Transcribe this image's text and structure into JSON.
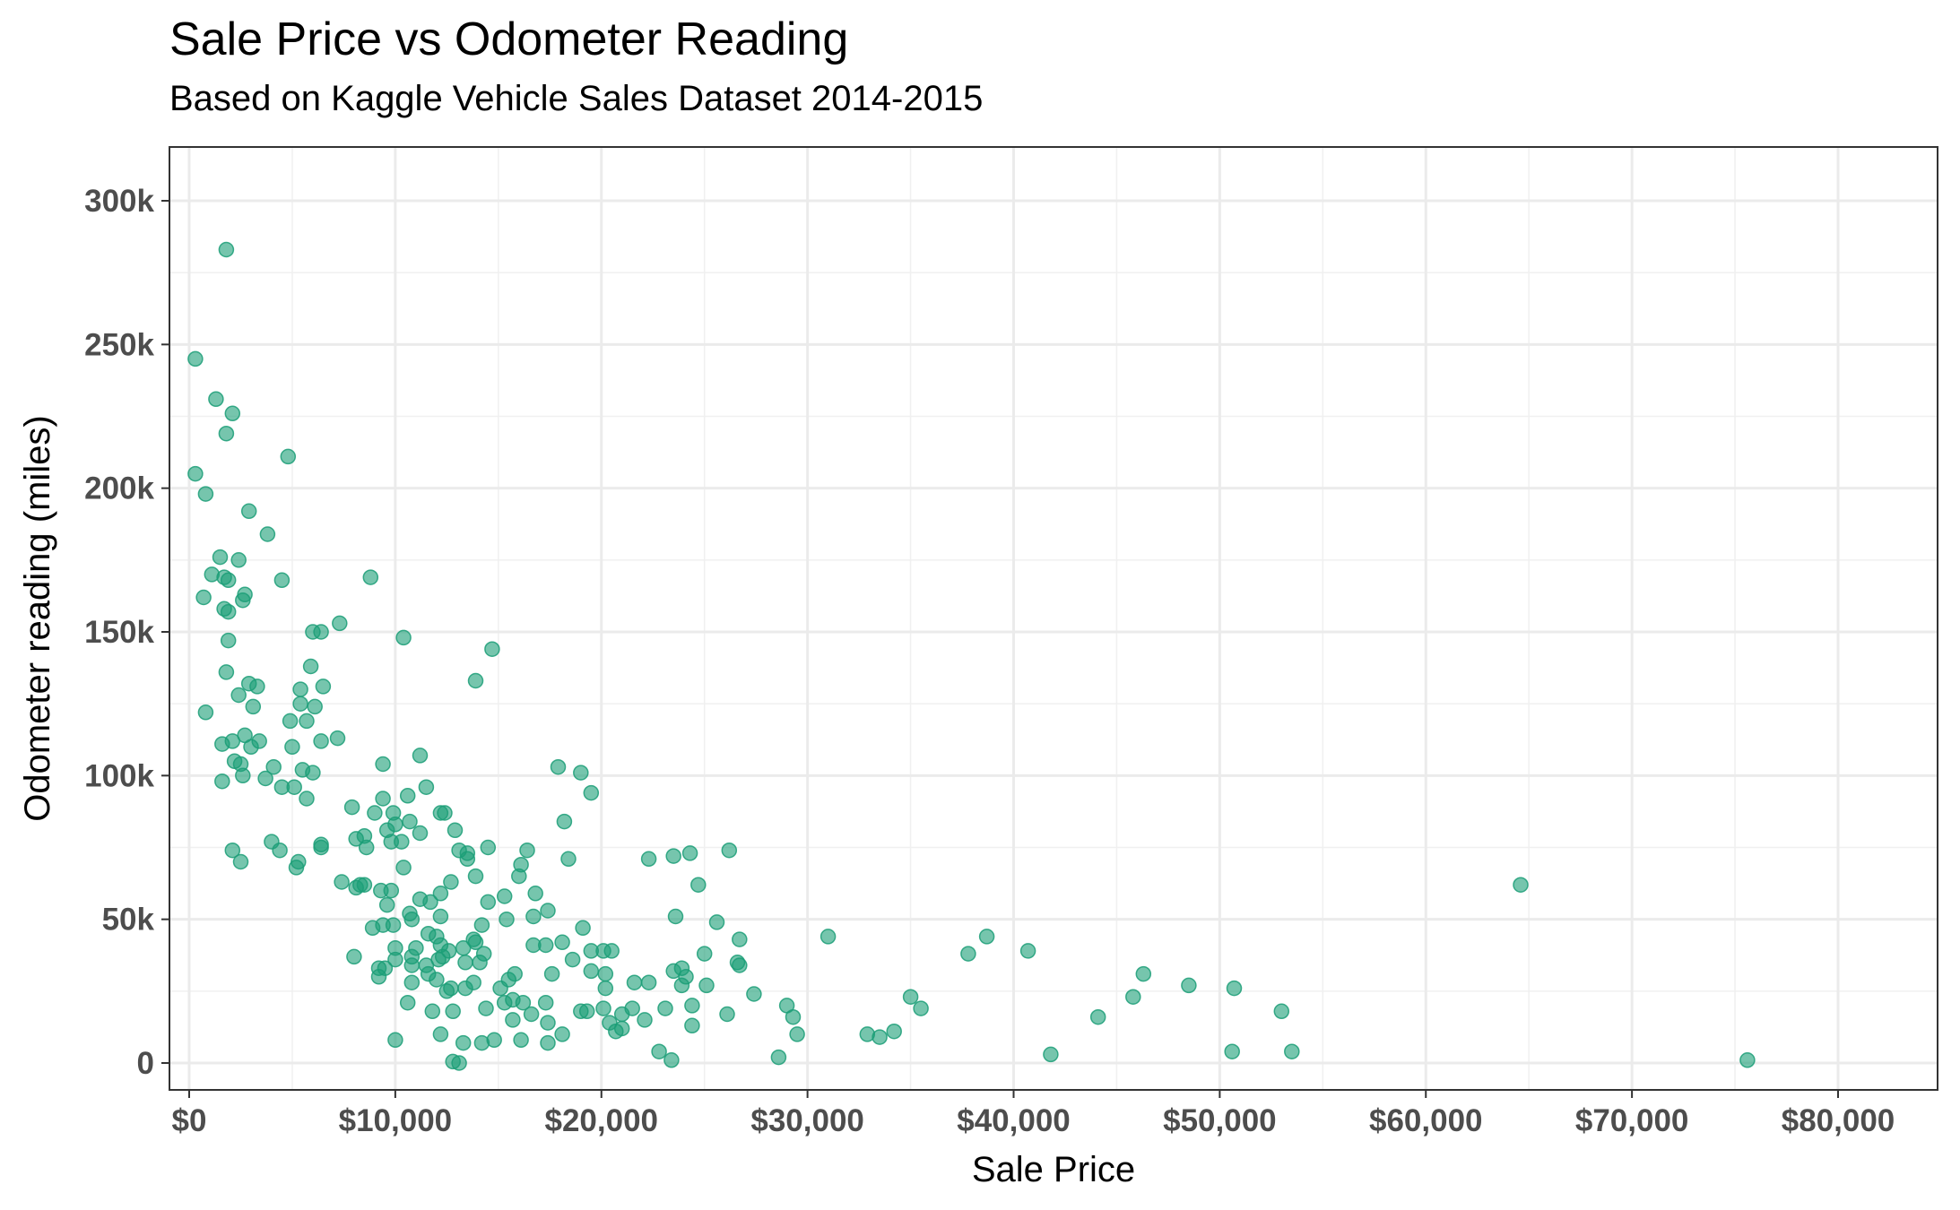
{
  "chart_data": {
    "type": "scatter",
    "title": "Sale Price vs Odometer Reading",
    "subtitle": "Based on Kaggle Vehicle Sales Dataset 2014-2015",
    "xlabel": "Sale Price",
    "ylabel": "Odometer reading (miles)",
    "xlim": [
      -1000,
      85000
    ],
    "ylim": [
      -12000,
      320000
    ],
    "x_ticks": [
      0,
      10000,
      20000,
      30000,
      40000,
      50000,
      60000,
      70000,
      80000
    ],
    "x_tick_labels": [
      "$0",
      "$10,000",
      "$20,000",
      "$30,000",
      "$40,000",
      "$50,000",
      "$60,000",
      "$70,000",
      "$80,000"
    ],
    "y_ticks": [
      0,
      50000,
      100000,
      150000,
      200000,
      250000,
      300000
    ],
    "y_tick_labels": [
      "0",
      "50k",
      "100k",
      "150k",
      "200k",
      "250k",
      "300k"
    ],
    "grid": true,
    "point_color": "#1b9e77",
    "points": [
      [
        1800,
        283000
      ],
      [
        300,
        245000
      ],
      [
        1300,
        231000
      ],
      [
        2100,
        226000
      ],
      [
        1800,
        219000
      ],
      [
        4800,
        211000
      ],
      [
        300,
        205000
      ],
      [
        800,
        198000
      ],
      [
        2900,
        192000
      ],
      [
        3800,
        184000
      ],
      [
        1500,
        176000
      ],
      [
        2400,
        175000
      ],
      [
        1100,
        170000
      ],
      [
        1700,
        169000
      ],
      [
        1900,
        168000
      ],
      [
        8800,
        169000
      ],
      [
        4500,
        168000
      ],
      [
        700,
        162000
      ],
      [
        2700,
        163000
      ],
      [
        2600,
        161000
      ],
      [
        1700,
        158000
      ],
      [
        1900,
        157000
      ],
      [
        6000,
        150000
      ],
      [
        6400,
        150000
      ],
      [
        7300,
        153000
      ],
      [
        1900,
        147000
      ],
      [
        10400,
        148000
      ],
      [
        14700,
        144000
      ],
      [
        5900,
        138000
      ],
      [
        1800,
        136000
      ],
      [
        13900,
        133000
      ],
      [
        2900,
        132000
      ],
      [
        3300,
        131000
      ],
      [
        6500,
        131000
      ],
      [
        5400,
        130000
      ],
      [
        2400,
        128000
      ],
      [
        3100,
        124000
      ],
      [
        6100,
        124000
      ],
      [
        5400,
        125000
      ],
      [
        800,
        122000
      ],
      [
        4900,
        119000
      ],
      [
        5700,
        119000
      ],
      [
        2700,
        114000
      ],
      [
        7200,
        113000
      ],
      [
        6400,
        112000
      ],
      [
        3400,
        112000
      ],
      [
        2100,
        112000
      ],
      [
        1600,
        111000
      ],
      [
        3000,
        110000
      ],
      [
        5000,
        110000
      ],
      [
        11200,
        107000
      ],
      [
        2200,
        105000
      ],
      [
        2500,
        104000
      ],
      [
        4100,
        103000
      ],
      [
        5500,
        102000
      ],
      [
        6000,
        101000
      ],
      [
        9400,
        104000
      ],
      [
        17900,
        103000
      ],
      [
        19000,
        101000
      ],
      [
        2600,
        100000
      ],
      [
        1600,
        98000
      ],
      [
        3700,
        99000
      ],
      [
        4500,
        96000
      ],
      [
        5100,
        96000
      ],
      [
        11500,
        96000
      ],
      [
        19500,
        94000
      ],
      [
        5700,
        92000
      ],
      [
        9400,
        92000
      ],
      [
        10600,
        93000
      ],
      [
        7900,
        89000
      ],
      [
        9000,
        87000
      ],
      [
        9900,
        87000
      ],
      [
        12200,
        87000
      ],
      [
        12400,
        87000
      ],
      [
        18200,
        84000
      ],
      [
        10000,
        83000
      ],
      [
        10700,
        84000
      ],
      [
        9600,
        81000
      ],
      [
        11200,
        80000
      ],
      [
        12900,
        81000
      ],
      [
        8500,
        79000
      ],
      [
        8100,
        78000
      ],
      [
        10300,
        77000
      ],
      [
        9800,
        77000
      ],
      [
        4000,
        77000
      ],
      [
        6400,
        76000
      ],
      [
        8600,
        75000
      ],
      [
        6400,
        75000
      ],
      [
        2100,
        74000
      ],
      [
        4400,
        74000
      ],
      [
        13100,
        74000
      ],
      [
        13500,
        73000
      ],
      [
        14500,
        75000
      ],
      [
        16400,
        74000
      ],
      [
        23500,
        72000
      ],
      [
        24300,
        73000
      ],
      [
        26200,
        74000
      ],
      [
        2500,
        70000
      ],
      [
        5300,
        70000
      ],
      [
        13500,
        71000
      ],
      [
        18400,
        71000
      ],
      [
        22300,
        71000
      ],
      [
        5200,
        68000
      ],
      [
        10400,
        68000
      ],
      [
        16100,
        69000
      ],
      [
        13900,
        65000
      ],
      [
        16000,
        65000
      ],
      [
        7400,
        63000
      ],
      [
        8300,
        62000
      ],
      [
        8500,
        62000
      ],
      [
        8100,
        61000
      ],
      [
        9300,
        60000
      ],
      [
        9800,
        60000
      ],
      [
        12200,
        59000
      ],
      [
        12700,
        63000
      ],
      [
        15300,
        58000
      ],
      [
        16800,
        59000
      ],
      [
        24700,
        62000
      ],
      [
        64600,
        62000
      ],
      [
        11200,
        57000
      ],
      [
        11700,
        56000
      ],
      [
        14500,
        56000
      ],
      [
        9600,
        55000
      ],
      [
        10700,
        52000
      ],
      [
        12200,
        51000
      ],
      [
        10800,
        50000
      ],
      [
        15400,
        50000
      ],
      [
        16700,
        51000
      ],
      [
        17400,
        53000
      ],
      [
        23600,
        51000
      ],
      [
        25600,
        49000
      ],
      [
        9400,
        48000
      ],
      [
        9900,
        48000
      ],
      [
        11600,
        45000
      ],
      [
        12000,
        44000
      ],
      [
        13800,
        43000
      ],
      [
        14200,
        48000
      ],
      [
        8900,
        47000
      ],
      [
        19100,
        47000
      ],
      [
        31000,
        44000
      ],
      [
        38700,
        44000
      ],
      [
        26700,
        43000
      ],
      [
        10000,
        40000
      ],
      [
        11000,
        40000
      ],
      [
        10800,
        37000
      ],
      [
        12200,
        41000
      ],
      [
        12600,
        39000
      ],
      [
        13300,
        40000
      ],
      [
        13900,
        42000
      ],
      [
        14300,
        38000
      ],
      [
        16700,
        41000
      ],
      [
        17300,
        41000
      ],
      [
        18100,
        42000
      ],
      [
        19500,
        39000
      ],
      [
        20100,
        39000
      ],
      [
        20500,
        39000
      ],
      [
        25000,
        38000
      ],
      [
        26600,
        35000
      ],
      [
        37800,
        38000
      ],
      [
        40700,
        39000
      ],
      [
        8000,
        37000
      ],
      [
        9500,
        33000
      ],
      [
        10000,
        36000
      ],
      [
        10800,
        34000
      ],
      [
        11600,
        31000
      ],
      [
        12300,
        37000
      ],
      [
        13400,
        35000
      ],
      [
        14100,
        35000
      ],
      [
        15800,
        31000
      ],
      [
        17600,
        31000
      ],
      [
        18600,
        36000
      ],
      [
        19500,
        32000
      ],
      [
        20200,
        31000
      ],
      [
        21600,
        28000
      ],
      [
        23500,
        32000
      ],
      [
        23900,
        33000
      ],
      [
        24100,
        30000
      ],
      [
        26700,
        34000
      ],
      [
        9200,
        30000
      ],
      [
        10800,
        28000
      ],
      [
        12000,
        29000
      ],
      [
        12700,
        26000
      ],
      [
        13800,
        28000
      ],
      [
        15100,
        26000
      ],
      [
        15500,
        29000
      ],
      [
        20200,
        26000
      ],
      [
        22300,
        28000
      ],
      [
        23900,
        27000
      ],
      [
        25100,
        27000
      ],
      [
        44100,
        16000
      ],
      [
        46300,
        31000
      ],
      [
        48500,
        27000
      ],
      [
        50700,
        26000
      ],
      [
        9200,
        33000
      ],
      [
        11500,
        34000
      ],
      [
        12100,
        36000
      ],
      [
        12500,
        25000
      ],
      [
        13400,
        26000
      ],
      [
        14400,
        19000
      ],
      [
        15300,
        21000
      ],
      [
        15700,
        22000
      ],
      [
        16200,
        21000
      ],
      [
        17300,
        21000
      ],
      [
        19000,
        18000
      ],
      [
        20100,
        19000
      ],
      [
        21000,
        17000
      ],
      [
        21500,
        19000
      ],
      [
        23100,
        19000
      ],
      [
        24400,
        20000
      ],
      [
        27400,
        24000
      ],
      [
        29000,
        20000
      ],
      [
        35000,
        23000
      ],
      [
        35500,
        19000
      ],
      [
        45800,
        23000
      ],
      [
        53000,
        18000
      ],
      [
        10600,
        21000
      ],
      [
        11800,
        18000
      ],
      [
        12800,
        18000
      ],
      [
        15700,
        15000
      ],
      [
        16600,
        17000
      ],
      [
        17400,
        14000
      ],
      [
        18100,
        10000
      ],
      [
        19300,
        18000
      ],
      [
        20400,
        14000
      ],
      [
        21000,
        12000
      ],
      [
        22100,
        15000
      ],
      [
        24400,
        13000
      ],
      [
        26100,
        17000
      ],
      [
        29300,
        16000
      ],
      [
        29500,
        10000
      ],
      [
        32900,
        10000
      ],
      [
        33500,
        9000
      ],
      [
        34200,
        11000
      ],
      [
        10000,
        8000
      ],
      [
        12200,
        10000
      ],
      [
        13300,
        7000
      ],
      [
        14200,
        7000
      ],
      [
        14800,
        8000
      ],
      [
        16100,
        8000
      ],
      [
        17400,
        7000
      ],
      [
        20700,
        11000
      ],
      [
        22800,
        4000
      ],
      [
        23400,
        1000
      ],
      [
        28600,
        2000
      ],
      [
        41800,
        3000
      ],
      [
        50600,
        4000
      ],
      [
        53500,
        4000
      ],
      [
        75600,
        1000
      ],
      [
        12800,
        500
      ],
      [
        13100,
        0
      ]
    ]
  }
}
